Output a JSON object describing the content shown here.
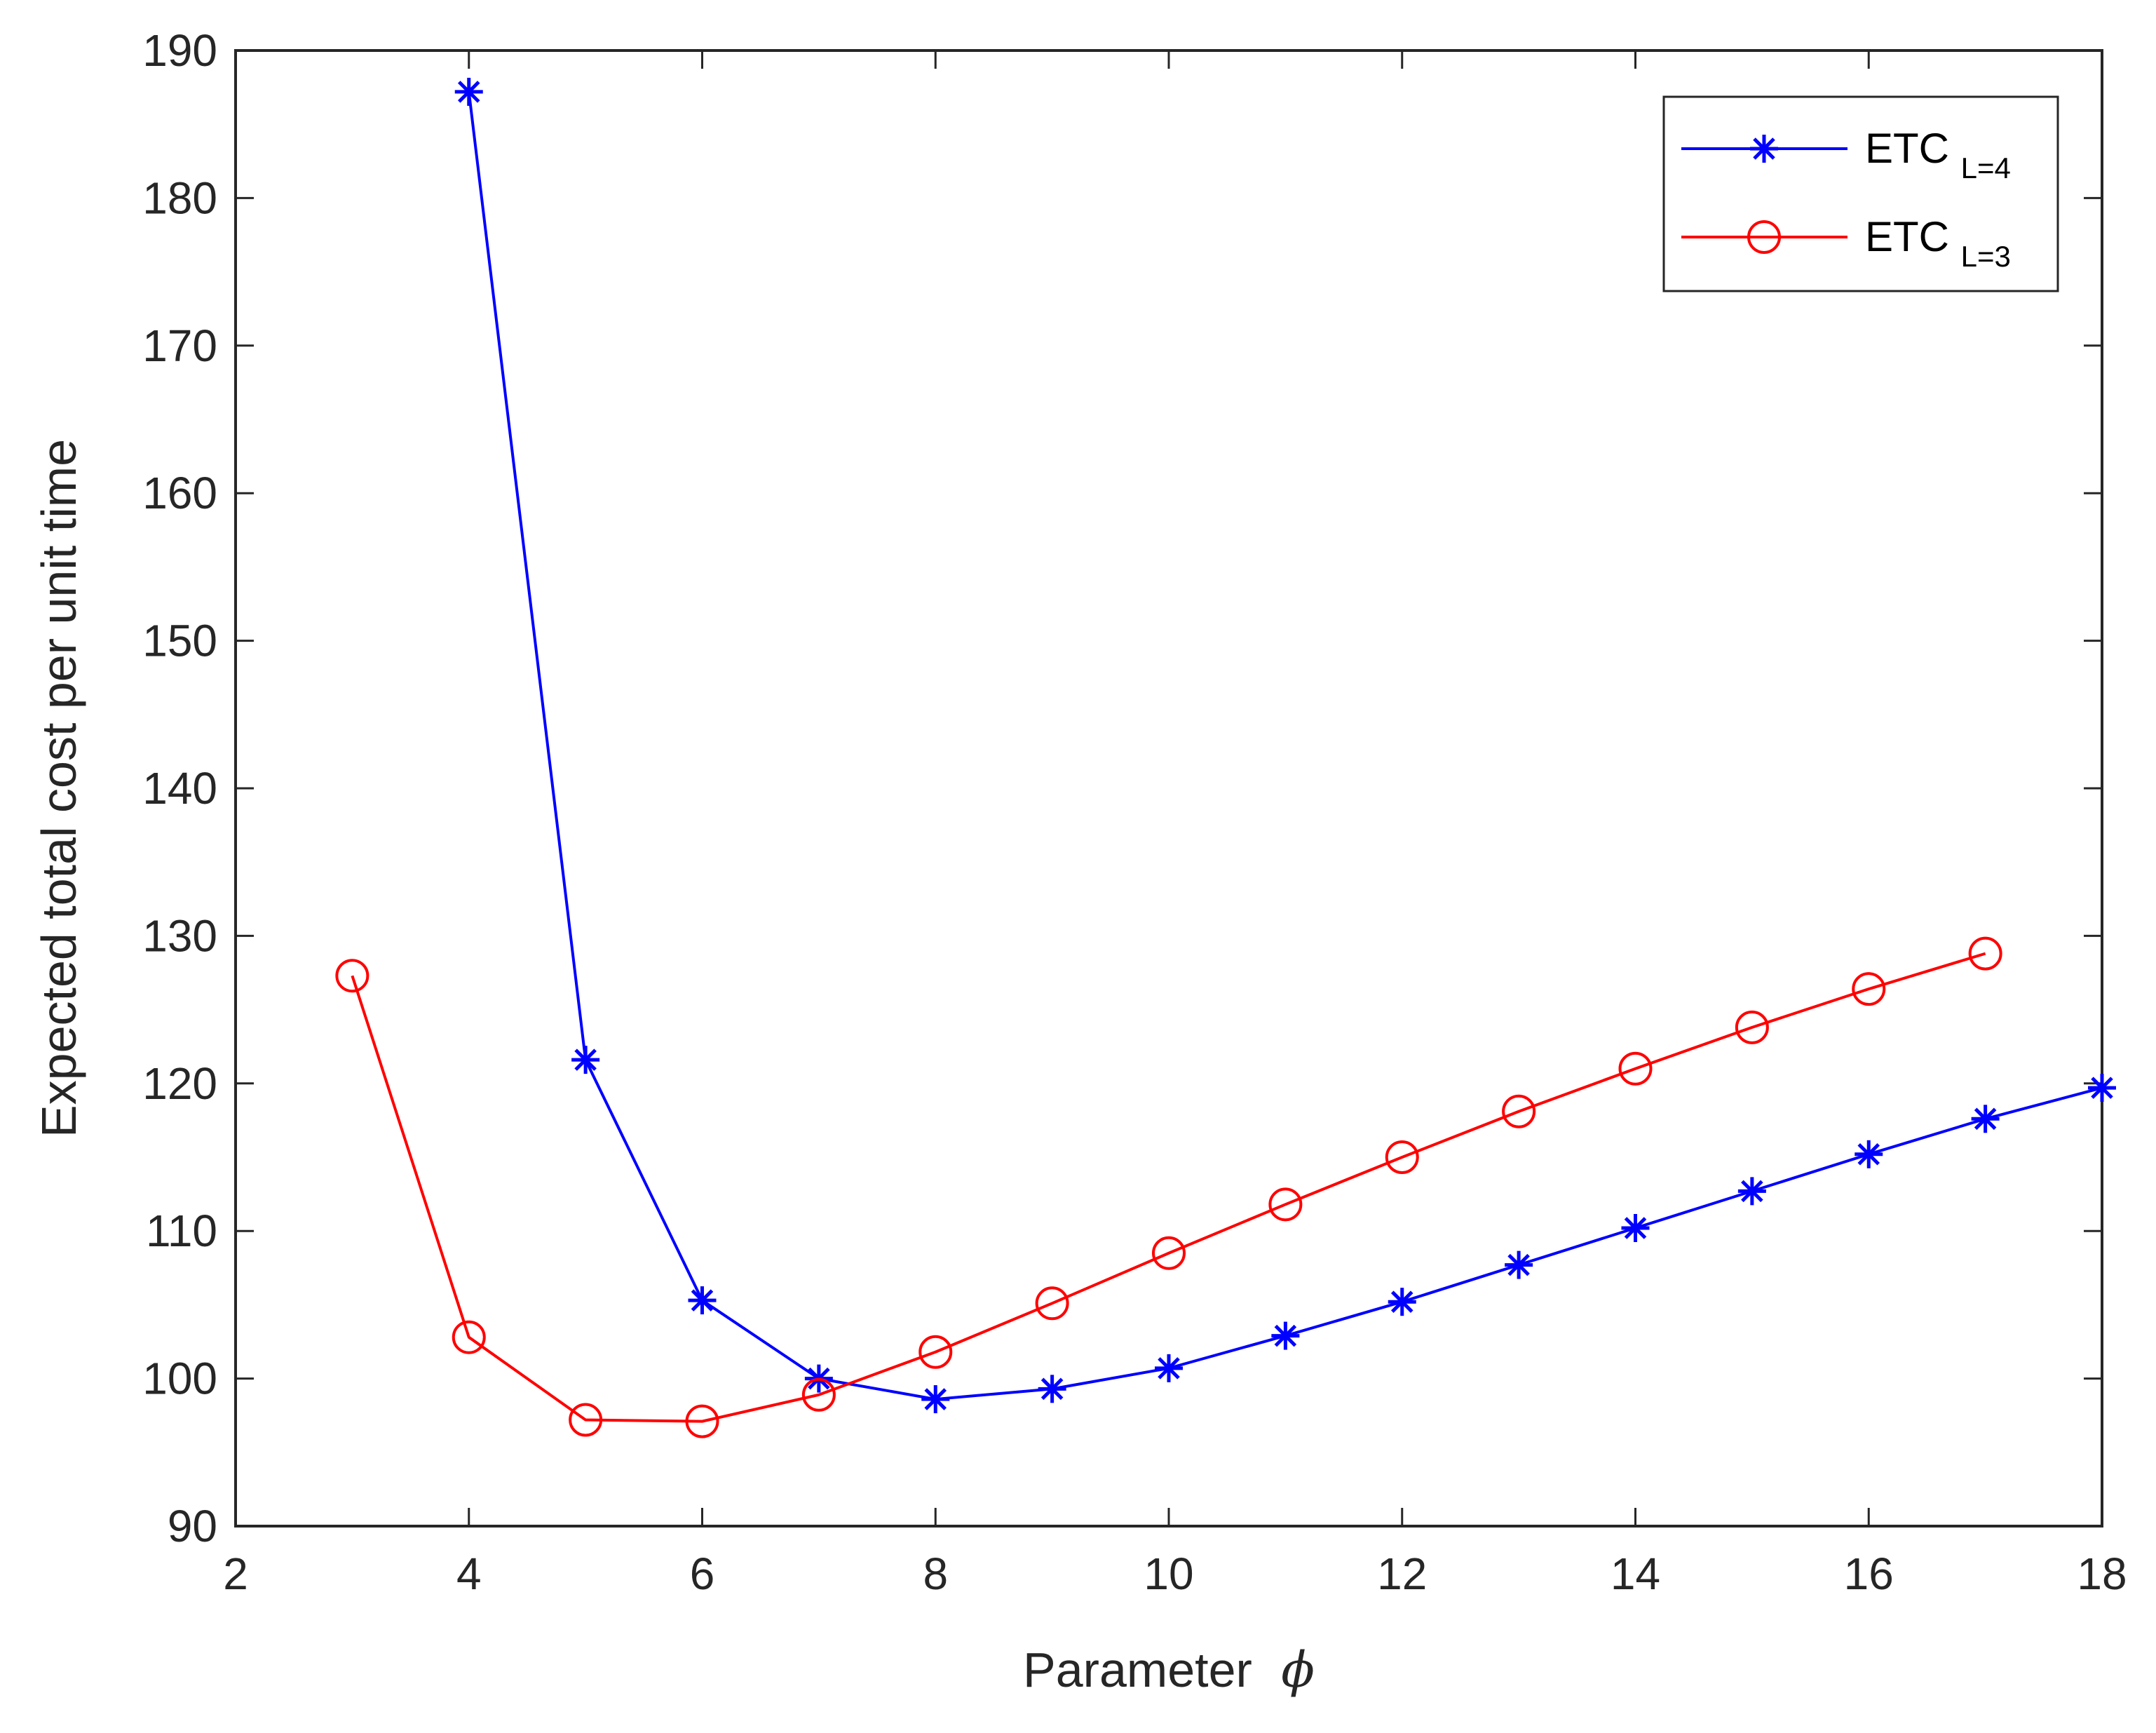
{
  "chart_data": {
    "type": "line",
    "title": "",
    "xlabel": "Parameter",
    "xlabel_symbol": "ϕ",
    "ylabel": "Expected total cost per unit time",
    "xlim": [
      2,
      18
    ],
    "ylim": [
      90,
      190
    ],
    "xticks": [
      2,
      4,
      6,
      8,
      10,
      12,
      14,
      16,
      18
    ],
    "yticks": [
      90,
      100,
      110,
      120,
      130,
      140,
      150,
      160,
      170,
      180,
      190
    ],
    "grid": false,
    "legend_position": "top-right",
    "series": [
      {
        "name": "ETC_{L=4}",
        "label_main": "ETC",
        "label_sub": "L=4",
        "color": "#0000ff",
        "marker": "asterisk",
        "x": [
          4,
          5,
          6,
          7,
          8,
          9,
          10,
          11,
          12,
          13,
          14,
          15,
          16,
          17,
          18
        ],
        "y": [
          187.2,
          121.6,
          105.3,
          100.0,
          98.6,
          99.3,
          100.7,
          102.9,
          105.2,
          107.7,
          110.2,
          112.7,
          115.2,
          117.6,
          119.7
        ]
      },
      {
        "name": "ETC_{L=3}",
        "label_main": "ETC",
        "label_sub": "L=3",
        "color": "#ff0000",
        "marker": "circle",
        "x": [
          3,
          4,
          5,
          6,
          7,
          8,
          9,
          10,
          11,
          12,
          13,
          14,
          15,
          16,
          17
        ],
        "y": [
          127.3,
          102.8,
          97.2,
          97.1,
          98.9,
          101.8,
          105.1,
          108.5,
          111.8,
          115.0,
          118.1,
          121.0,
          123.8,
          126.4,
          128.8
        ]
      }
    ]
  }
}
